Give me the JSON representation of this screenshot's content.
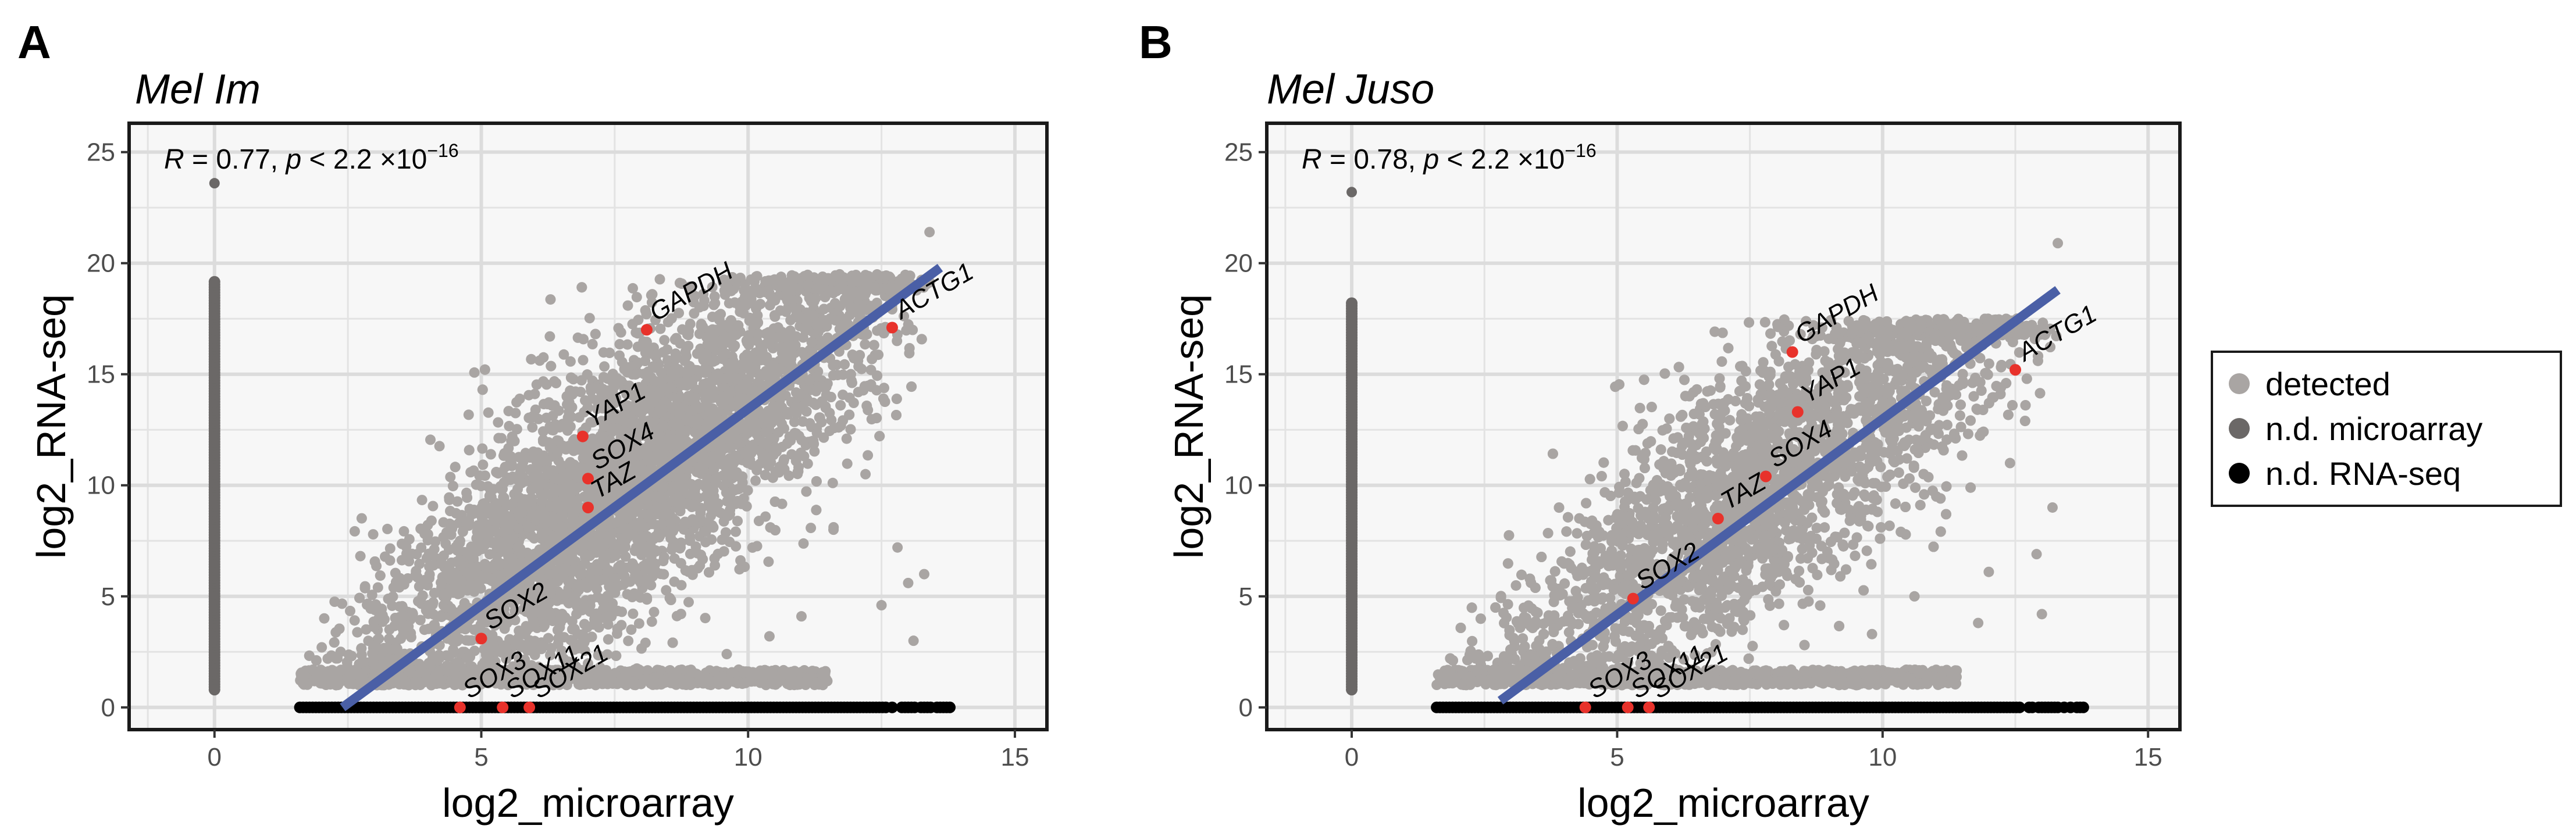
{
  "chart_data": [
    {
      "type": "scatter",
      "panel": "A",
      "title": "Mel Im",
      "xlabel": "log2_microarray",
      "ylabel": "log2_RNA-seq",
      "xlim": [
        -1.6,
        15.6
      ],
      "ylim": [
        -1,
        26.3
      ],
      "xticks": [
        0,
        5,
        10,
        15
      ],
      "yticks": [
        0,
        5,
        10,
        15,
        20,
        25
      ],
      "grid": true,
      "stat_r_label": "R",
      "stat_r_value": " = 0.77, ",
      "stat_p_label": "p",
      "stat_p_value": " < 2.2 ×10",
      "stat_p_exp": "−16",
      "regression": {
        "x0": 2.4,
        "y0": 0,
        "x1": 13.6,
        "y1": 19.8
      },
      "cloud": {
        "x_min": 1.6,
        "x_max": 13.5,
        "center_slope": 1.75,
        "center_intercept": -3.2,
        "spread": 3.0,
        "floor": 1.0,
        "top_cap": 19.5
      },
      "extra_points": [
        [
          13.4,
          21.4
        ],
        [
          0,
          23.6
        ],
        [
          12.8,
          7.2
        ],
        [
          13.0,
          5.6
        ],
        [
          12.2,
          10.5
        ],
        [
          11.6,
          8.0
        ],
        [
          13.3,
          6.0
        ],
        [
          10.4,
          3.2
        ],
        [
          11.0,
          4.1
        ],
        [
          9.6,
          2.4
        ],
        [
          13.1,
          3.0
        ],
        [
          12.5,
          4.6
        ]
      ],
      "nd_microarray": {
        "x": 0,
        "y_min": 0.8,
        "y_max": 19.2
      },
      "nd_rnaseq": {
        "x_min": 1.6,
        "x_max": 13.8,
        "y": 0
      },
      "highlighted": [
        {
          "gene": "GAPDH",
          "x": 8.1,
          "y": 17.0
        },
        {
          "gene": "ACTG1",
          "x": 12.7,
          "y": 17.1
        },
        {
          "gene": "YAP1",
          "x": 6.9,
          "y": 12.2
        },
        {
          "gene": "SOX4",
          "x": 7.0,
          "y": 10.3
        },
        {
          "gene": "TAZ",
          "x": 7.0,
          "y": 9.0
        },
        {
          "gene": "SOX2",
          "x": 5.0,
          "y": 3.1
        },
        {
          "gene": "SOX3",
          "x": 4.6,
          "y": 0
        },
        {
          "gene": "SOX11",
          "x": 5.4,
          "y": 0
        },
        {
          "gene": "SOX21",
          "x": 5.9,
          "y": 0
        }
      ]
    },
    {
      "type": "scatter",
      "panel": "B",
      "title": "Mel Juso",
      "xlabel": "log2_microarray",
      "ylabel": "log2_RNA-seq",
      "xlim": [
        -1.6,
        15.6
      ],
      "ylim": [
        -1,
        26.3
      ],
      "xticks": [
        0,
        5,
        10,
        15
      ],
      "yticks": [
        0,
        5,
        10,
        15,
        20,
        25
      ],
      "grid": true,
      "stat_r_label": "R",
      "stat_r_value": " = 0.78, ",
      "stat_p_label": "p",
      "stat_p_value": " < 2.2 ×10",
      "stat_p_exp": "−16",
      "regression": {
        "x0": 2.8,
        "y0": 0.3,
        "x1": 13.3,
        "y1": 18.8
      },
      "cloud": {
        "x_min": 1.6,
        "x_max": 13.4,
        "center_slope": 1.75,
        "center_intercept": -3.5,
        "spread": 2.9,
        "floor": 1.0,
        "top_cap": 17.5
      },
      "extra_points": [
        [
          13.3,
          20.9
        ],
        [
          0,
          23.2
        ],
        [
          12.9,
          6.9
        ],
        [
          12.4,
          11.0
        ],
        [
          13.2,
          9.0
        ],
        [
          11.8,
          3.8
        ],
        [
          12.0,
          6.1
        ],
        [
          10.6,
          5.0
        ],
        [
          13.0,
          4.2
        ],
        [
          9.8,
          3.3
        ]
      ],
      "nd_microarray": {
        "x": 0,
        "y_min": 0.8,
        "y_max": 18.2
      },
      "nd_rnaseq": {
        "x_min": 1.6,
        "x_max": 13.8,
        "y": 0
      },
      "highlighted": [
        {
          "gene": "GAPDH",
          "x": 8.3,
          "y": 16.0
        },
        {
          "gene": "ACTG1",
          "x": 12.5,
          "y": 15.2
        },
        {
          "gene": "YAP1",
          "x": 8.4,
          "y": 13.3
        },
        {
          "gene": "SOX4",
          "x": 7.8,
          "y": 10.4
        },
        {
          "gene": "TAZ",
          "x": 6.9,
          "y": 8.5
        },
        {
          "gene": "SOX2",
          "x": 5.3,
          "y": 4.9
        },
        {
          "gene": "SOX3",
          "x": 4.4,
          "y": 0
        },
        {
          "gene": "SOX11",
          "x": 5.2,
          "y": 0
        },
        {
          "gene": "SOX21",
          "x": 5.6,
          "y": 0
        }
      ]
    }
  ],
  "legend": {
    "items": [
      {
        "label": "detected",
        "color": "#a9a5a3"
      },
      {
        "label": "n.d. microarray",
        "color": "#6b6867"
      },
      {
        "label": "n.d. RNA-seq",
        "color": "#000000"
      }
    ]
  },
  "colors": {
    "detected": "#a9a5a3",
    "nd_microarray": "#6b6867",
    "nd_rnaseq": "#000000",
    "highlight": "#e8322b",
    "regression": "#4a5fa6",
    "panel_bg": "#f7f7f7",
    "grid": "#e3e3e3"
  }
}
